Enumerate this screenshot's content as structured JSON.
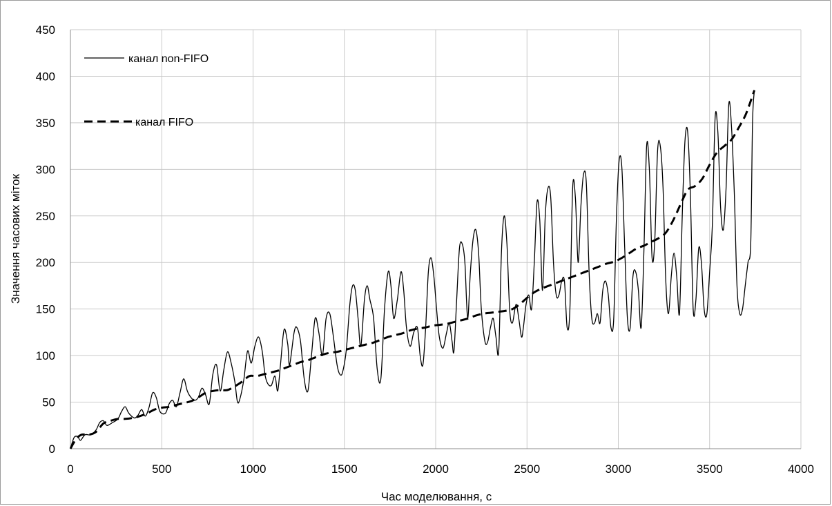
{
  "chart_data": {
    "type": "line",
    "xlabel": "Час моделювання,  с",
    "ylabel": "Значення часових міток",
    "xlim": [
      0,
      4000
    ],
    "ylim": [
      0,
      450
    ],
    "x_ticks": [
      "0",
      "500",
      "1000",
      "1500",
      "2000",
      "2500",
      "3000",
      "3500",
      "4000"
    ],
    "y_ticks": [
      "0",
      "50",
      "100",
      "150",
      "200",
      "250",
      "300",
      "350",
      "400",
      "450"
    ],
    "grid": true,
    "legend_position": "top-left",
    "series": [
      {
        "name": "канал non-FIFO",
        "style": "solid",
        "color": "#000000",
        "points": [
          [
            0,
            0
          ],
          [
            20,
            12
          ],
          [
            40,
            13
          ],
          [
            55,
            9
          ],
          [
            80,
            15
          ],
          [
            110,
            15
          ],
          [
            140,
            20
          ],
          [
            160,
            28
          ],
          [
            180,
            30
          ],
          [
            200,
            25
          ],
          [
            230,
            28
          ],
          [
            260,
            32
          ],
          [
            280,
            40
          ],
          [
            300,
            45
          ],
          [
            320,
            38
          ],
          [
            350,
            33
          ],
          [
            370,
            36
          ],
          [
            390,
            42
          ],
          [
            410,
            35
          ],
          [
            430,
            44
          ],
          [
            450,
            60
          ],
          [
            470,
            55
          ],
          [
            490,
            40
          ],
          [
            520,
            38
          ],
          [
            540,
            48
          ],
          [
            560,
            52
          ],
          [
            580,
            45
          ],
          [
            600,
            60
          ],
          [
            620,
            75
          ],
          [
            640,
            62
          ],
          [
            660,
            55
          ],
          [
            680,
            52
          ],
          [
            700,
            55
          ],
          [
            720,
            65
          ],
          [
            740,
            58
          ],
          [
            760,
            48
          ],
          [
            780,
            80
          ],
          [
            800,
            90
          ],
          [
            820,
            62
          ],
          [
            840,
            85
          ],
          [
            860,
            104
          ],
          [
            880,
            92
          ],
          [
            900,
            72
          ],
          [
            915,
            50
          ],
          [
            930,
            55
          ],
          [
            950,
            75
          ],
          [
            970,
            105
          ],
          [
            990,
            92
          ],
          [
            1010,
            110
          ],
          [
            1030,
            120
          ],
          [
            1050,
            105
          ],
          [
            1065,
            80
          ],
          [
            1080,
            70
          ],
          [
            1100,
            68
          ],
          [
            1120,
            78
          ],
          [
            1135,
            62
          ],
          [
            1150,
            90
          ],
          [
            1170,
            128
          ],
          [
            1190,
            112
          ],
          [
            1200,
            90
          ],
          [
            1225,
            125
          ],
          [
            1240,
            130
          ],
          [
            1260,
            115
          ],
          [
            1280,
            75
          ],
          [
            1300,
            62
          ],
          [
            1320,
            100
          ],
          [
            1340,
            140
          ],
          [
            1360,
            125
          ],
          [
            1380,
            100
          ],
          [
            1400,
            140
          ],
          [
            1420,
            145
          ],
          [
            1440,
            120
          ],
          [
            1460,
            90
          ],
          [
            1475,
            80
          ],
          [
            1490,
            82
          ],
          [
            1510,
            105
          ],
          [
            1530,
            155
          ],
          [
            1545,
            175
          ],
          [
            1560,
            170
          ],
          [
            1575,
            140
          ],
          [
            1590,
            110
          ],
          [
            1610,
            160
          ],
          [
            1625,
            175
          ],
          [
            1640,
            160
          ],
          [
            1660,
            140
          ],
          [
            1680,
            85
          ],
          [
            1700,
            75
          ],
          [
            1720,
            150
          ],
          [
            1740,
            190
          ],
          [
            1755,
            175
          ],
          [
            1770,
            140
          ],
          [
            1790,
            160
          ],
          [
            1810,
            190
          ],
          [
            1825,
            170
          ],
          [
            1840,
            130
          ],
          [
            1860,
            110
          ],
          [
            1880,
            125
          ],
          [
            1900,
            130
          ],
          [
            1915,
            100
          ],
          [
            1930,
            90
          ],
          [
            1945,
            130
          ],
          [
            1960,
            190
          ],
          [
            1975,
            205
          ],
          [
            1990,
            185
          ],
          [
            2005,
            150
          ],
          [
            2020,
            120
          ],
          [
            2040,
            108
          ],
          [
            2060,
            125
          ],
          [
            2075,
            135
          ],
          [
            2090,
            115
          ],
          [
            2100,
            105
          ],
          [
            2115,
            160
          ],
          [
            2130,
            215
          ],
          [
            2145,
            220
          ],
          [
            2160,
            200
          ],
          [
            2175,
            140
          ],
          [
            2190,
            190
          ],
          [
            2205,
            225
          ],
          [
            2220,
            235
          ],
          [
            2235,
            210
          ],
          [
            2250,
            150
          ],
          [
            2270,
            115
          ],
          [
            2285,
            115
          ],
          [
            2300,
            130
          ],
          [
            2315,
            140
          ],
          [
            2330,
            120
          ],
          [
            2345,
            105
          ],
          [
            2360,
            210
          ],
          [
            2375,
            250
          ],
          [
            2390,
            220
          ],
          [
            2405,
            150
          ],
          [
            2420,
            135
          ],
          [
            2440,
            155
          ],
          [
            2455,
            140
          ],
          [
            2470,
            120
          ],
          [
            2480,
            130
          ],
          [
            2495,
            155
          ],
          [
            2510,
            165
          ],
          [
            2525,
            150
          ],
          [
            2540,
            200
          ],
          [
            2555,
            265
          ],
          [
            2570,
            245
          ],
          [
            2585,
            170
          ],
          [
            2600,
            250
          ],
          [
            2615,
            280
          ],
          [
            2630,
            270
          ],
          [
            2645,
            200
          ],
          [
            2660,
            165
          ],
          [
            2675,
            165
          ],
          [
            2690,
            180
          ],
          [
            2705,
            180
          ],
          [
            2720,
            130
          ],
          [
            2735,
            150
          ],
          [
            2750,
            280
          ],
          [
            2765,
            270
          ],
          [
            2780,
            200
          ],
          [
            2795,
            260
          ],
          [
            2810,
            295
          ],
          [
            2825,
            285
          ],
          [
            2840,
            190
          ],
          [
            2855,
            140
          ],
          [
            2870,
            135
          ],
          [
            2885,
            145
          ],
          [
            2900,
            135
          ],
          [
            2915,
            170
          ],
          [
            2930,
            180
          ],
          [
            2945,
            165
          ],
          [
            2960,
            130
          ],
          [
            2975,
            140
          ],
          [
            2990,
            250
          ],
          [
            3005,
            310
          ],
          [
            3020,
            300
          ],
          [
            3035,
            215
          ],
          [
            3050,
            140
          ],
          [
            3065,
            130
          ],
          [
            3080,
            185
          ],
          [
            3095,
            190
          ],
          [
            3110,
            170
          ],
          [
            3125,
            130
          ],
          [
            3140,
            210
          ],
          [
            3155,
            325
          ],
          [
            3170,
            300
          ],
          [
            3185,
            205
          ],
          [
            3200,
            225
          ],
          [
            3215,
            320
          ],
          [
            3230,
            325
          ],
          [
            3245,
            280
          ],
          [
            3260,
            180
          ],
          [
            3275,
            145
          ],
          [
            3290,
            185
          ],
          [
            3305,
            210
          ],
          [
            3320,
            185
          ],
          [
            3335,
            145
          ],
          [
            3350,
            250
          ],
          [
            3365,
            330
          ],
          [
            3380,
            340
          ],
          [
            3395,
            270
          ],
          [
            3410,
            150
          ],
          [
            3425,
            160
          ],
          [
            3440,
            215
          ],
          [
            3455,
            200
          ],
          [
            3470,
            150
          ],
          [
            3485,
            145
          ],
          [
            3500,
            190
          ],
          [
            3515,
            240
          ],
          [
            3530,
            355
          ],
          [
            3545,
            340
          ],
          [
            3560,
            260
          ],
          [
            3575,
            235
          ],
          [
            3590,
            280
          ],
          [
            3605,
            370
          ],
          [
            3620,
            345
          ],
          [
            3635,
            275
          ],
          [
            3650,
            175
          ],
          [
            3665,
            145
          ],
          [
            3680,
            150
          ],
          [
            3695,
            175
          ],
          [
            3710,
            200
          ],
          [
            3725,
            220
          ],
          [
            3735,
            350
          ],
          [
            3745,
            385
          ]
        ]
      },
      {
        "name": "канал FIFO",
        "style": "dashed",
        "color": "#000000",
        "points": [
          [
            0,
            0
          ],
          [
            30,
            10
          ],
          [
            60,
            15
          ],
          [
            100,
            15
          ],
          [
            140,
            18
          ],
          [
            180,
            27
          ],
          [
            220,
            30
          ],
          [
            260,
            32
          ],
          [
            300,
            32
          ],
          [
            340,
            33
          ],
          [
            380,
            35
          ],
          [
            420,
            38
          ],
          [
            460,
            42
          ],
          [
            500,
            44
          ],
          [
            540,
            45
          ],
          [
            580,
            47
          ],
          [
            620,
            49
          ],
          [
            660,
            51
          ],
          [
            700,
            55
          ],
          [
            740,
            60
          ],
          [
            780,
            62
          ],
          [
            820,
            63
          ],
          [
            860,
            63
          ],
          [
            900,
            67
          ],
          [
            940,
            72
          ],
          [
            980,
            78
          ],
          [
            1020,
            78
          ],
          [
            1060,
            80
          ],
          [
            1100,
            82
          ],
          [
            1140,
            84
          ],
          [
            1180,
            87
          ],
          [
            1220,
            90
          ],
          [
            1260,
            93
          ],
          [
            1300,
            95
          ],
          [
            1340,
            98
          ],
          [
            1380,
            101
          ],
          [
            1420,
            103
          ],
          [
            1460,
            104
          ],
          [
            1500,
            106
          ],
          [
            1540,
            108
          ],
          [
            1580,
            110
          ],
          [
            1620,
            112
          ],
          [
            1660,
            114
          ],
          [
            1700,
            117
          ],
          [
            1740,
            120
          ],
          [
            1780,
            122
          ],
          [
            1820,
            124
          ],
          [
            1860,
            127
          ],
          [
            1900,
            129
          ],
          [
            1940,
            130
          ],
          [
            1980,
            132
          ],
          [
            2020,
            133
          ],
          [
            2060,
            134
          ],
          [
            2100,
            136
          ],
          [
            2140,
            138
          ],
          [
            2180,
            140
          ],
          [
            2220,
            143
          ],
          [
            2260,
            145
          ],
          [
            2300,
            146
          ],
          [
            2340,
            147
          ],
          [
            2380,
            148
          ],
          [
            2420,
            150
          ],
          [
            2460,
            155
          ],
          [
            2500,
            162
          ],
          [
            2540,
            168
          ],
          [
            2580,
            172
          ],
          [
            2620,
            175
          ],
          [
            2660,
            178
          ],
          [
            2700,
            181
          ],
          [
            2740,
            184
          ],
          [
            2780,
            187
          ],
          [
            2820,
            190
          ],
          [
            2860,
            193
          ],
          [
            2900,
            196
          ],
          [
            2940,
            199
          ],
          [
            2980,
            201
          ],
          [
            3020,
            205
          ],
          [
            3060,
            210
          ],
          [
            3100,
            215
          ],
          [
            3140,
            218
          ],
          [
            3180,
            222
          ],
          [
            3220,
            226
          ],
          [
            3260,
            232
          ],
          [
            3300,
            245
          ],
          [
            3340,
            262
          ],
          [
            3380,
            278
          ],
          [
            3420,
            282
          ],
          [
            3460,
            290
          ],
          [
            3500,
            305
          ],
          [
            3540,
            318
          ],
          [
            3580,
            325
          ],
          [
            3620,
            332
          ],
          [
            3660,
            345
          ],
          [
            3700,
            360
          ],
          [
            3745,
            385
          ]
        ]
      }
    ]
  }
}
